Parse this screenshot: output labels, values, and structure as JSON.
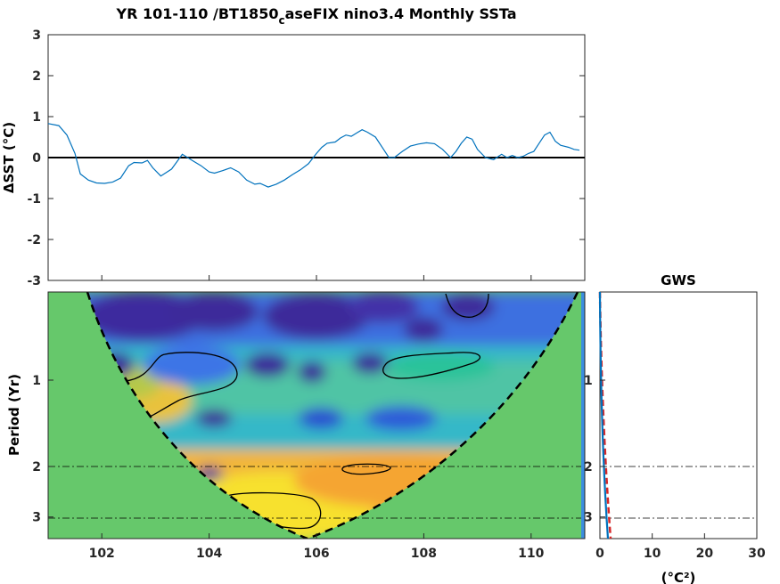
{
  "title": {
    "part1": "YR 101-110 /BT1850",
    "subscript": "c",
    "part2": "aseFIX nino3.4 Monthly SSTa"
  },
  "chart_data": [
    {
      "type": "line",
      "panel": "sst-timeseries",
      "ylabel": "ΔSST (°C)",
      "xlim": [
        101,
        111
      ],
      "ylim": [
        -3,
        3
      ],
      "yticks": [
        "3",
        "2",
        "1",
        "0",
        "-1",
        "-2",
        "-3"
      ],
      "zero_line": true,
      "line_color": "#0072BD",
      "series": [
        {
          "x": [
            101.0,
            101.2,
            101.35,
            101.5,
            101.6,
            101.75,
            101.9,
            102.05,
            102.2,
            102.35,
            102.5,
            102.6,
            102.75,
            102.85,
            102.95,
            103.1,
            103.3,
            103.4,
            103.5,
            103.6,
            103.7,
            103.85,
            104.0,
            104.1,
            104.25,
            104.4,
            104.55,
            104.7,
            104.85,
            104.95,
            105.1,
            105.25,
            105.4,
            105.55,
            105.7,
            105.85,
            106.0,
            106.1,
            106.2,
            106.35,
            106.45,
            106.55,
            106.65,
            106.75,
            106.85,
            106.95,
            107.1,
            107.25,
            107.35,
            107.45,
            107.6,
            107.75,
            107.9,
            108.05,
            108.2,
            108.35,
            108.5,
            108.6,
            108.7,
            108.8,
            108.9,
            109.0,
            109.15,
            109.3,
            109.45,
            109.55,
            109.65,
            109.75,
            109.85,
            109.95,
            110.05,
            110.15,
            110.25,
            110.35,
            110.45,
            110.55,
            110.7,
            110.8,
            110.9
          ],
          "y": [
            0.83,
            0.78,
            0.55,
            0.1,
            -0.4,
            -0.55,
            -0.62,
            -0.63,
            -0.6,
            -0.5,
            -0.2,
            -0.12,
            -0.13,
            -0.07,
            -0.25,
            -0.45,
            -0.28,
            -0.1,
            0.08,
            0.0,
            -0.08,
            -0.2,
            -0.35,
            -0.38,
            -0.32,
            -0.25,
            -0.35,
            -0.55,
            -0.65,
            -0.63,
            -0.72,
            -0.65,
            -0.55,
            -0.42,
            -0.3,
            -0.15,
            0.1,
            0.25,
            0.35,
            0.38,
            0.48,
            0.55,
            0.52,
            0.6,
            0.68,
            0.62,
            0.5,
            0.2,
            0.0,
            0.0,
            0.15,
            0.28,
            0.33,
            0.36,
            0.34,
            0.2,
            0.0,
            0.15,
            0.35,
            0.5,
            0.45,
            0.2,
            0.0,
            -0.05,
            0.08,
            0.0,
            0.05,
            0.0,
            0.03,
            0.1,
            0.15,
            0.35,
            0.55,
            0.62,
            0.4,
            0.3,
            0.25,
            0.2,
            0.18
          ]
        }
      ]
    },
    {
      "type": "heatmap",
      "panel": "wavelet-power-spectrum",
      "ylabel": "Period (Yr)",
      "xlim": [
        101,
        111
      ],
      "xticks": [
        "102",
        "104",
        "106",
        "108",
        "110"
      ],
      "yticks": [
        "1",
        "2",
        "3"
      ],
      "reference_periods": [
        2,
        3
      ],
      "colormap": "parula",
      "cone_of_influence": "dashed black",
      "outside_coi_color": "#66C86B"
    },
    {
      "type": "line",
      "panel": "global-wavelet-spectrum",
      "title": "GWS",
      "xlabel": "(°C²)",
      "xlim": [
        0,
        30
      ],
      "xticks": [
        "0",
        "10",
        "20",
        "30"
      ],
      "series": [
        {
          "color": "#D62728",
          "style": "dashed"
        },
        {
          "color": "#0072BD",
          "style": "solid"
        }
      ]
    }
  ]
}
